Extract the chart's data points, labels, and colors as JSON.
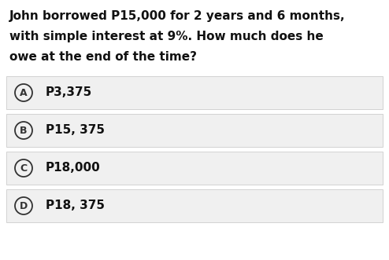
{
  "question_lines": [
    "John borrowed P15,000 for 2 years and 6 months,",
    "with simple interest at 9%. How much does he",
    "owe at the end of the time?"
  ],
  "options": [
    {
      "label": "A",
      "text": "P3,375"
    },
    {
      "label": "B",
      "text": "P15, 375"
    },
    {
      "label": "C",
      "text": "P18,000"
    },
    {
      "label": "D",
      "text": "P18, 375"
    }
  ],
  "bg_color": "#ffffff",
  "option_bg_color": "#f0f0f0",
  "option_border_color": "#cccccc",
  "question_color": "#111111",
  "option_text_color": "#111111",
  "circle_color": "#333333",
  "question_fontsize": 11.0,
  "option_fontsize": 11.0,
  "label_fontsize": 9.0,
  "fig_width": 4.94,
  "fig_height": 3.31,
  "dpi": 100
}
